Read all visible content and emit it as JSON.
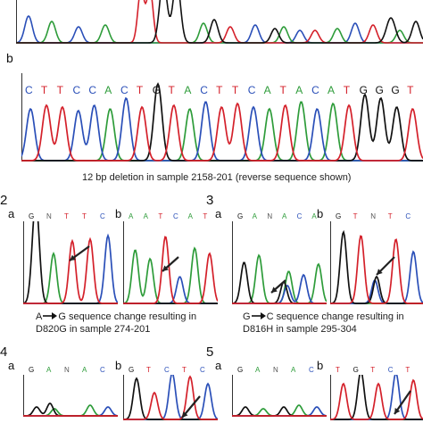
{
  "colors": {
    "A": "#2e9c3a",
    "C": "#2a4fb8",
    "G": "#111111",
    "T": "#d4202a"
  },
  "panel1": {
    "label_b": "b",
    "seq_b": [
      "C",
      "T",
      "T",
      "C",
      "C",
      "A",
      "C",
      "T",
      "G",
      "T",
      "A",
      "C",
      "T",
      "T",
      "C",
      "A",
      "T",
      "A",
      "C",
      "A",
      "T",
      "G",
      "G",
      "G",
      "T"
    ],
    "caption": "12 bp deletion in sample 2158-201 (reverse sequence shown)"
  },
  "panel2": {
    "num": "2",
    "a": {
      "label": "a",
      "seq": [
        "G",
        "N",
        "T",
        "T",
        "C"
      ]
    },
    "b": {
      "label": "b",
      "seq": [
        "A",
        "A",
        "T",
        "C",
        "A",
        "T"
      ]
    },
    "caption1": "A",
    "caption1_rest": "G sequence change resulting in",
    "caption2": "D820G in sample 274-201"
  },
  "panel3": {
    "num": "3",
    "a": {
      "label": "a",
      "seq": [
        "G",
        "A",
        "N",
        "A",
        "C",
        "A"
      ]
    },
    "b": {
      "label": "b",
      "seq": [
        "G",
        "T",
        "N",
        "T",
        "C"
      ]
    },
    "caption1": "G",
    "caption1_rest": "C sequence change resulting in",
    "caption2": "D816H in sample 295-304"
  },
  "panel4": {
    "num": "4",
    "a": {
      "label": "a",
      "seq": [
        "G",
        "A",
        "N",
        "A",
        "C"
      ]
    },
    "b": {
      "label": "b",
      "seq": [
        "G",
        "T",
        "C",
        "T",
        "C"
      ]
    }
  },
  "panel5": {
    "num": "5",
    "a": {
      "label": "a",
      "seq": [
        "G",
        "A",
        "N",
        "A",
        "C"
      ]
    },
    "b": {
      "label": "b",
      "seq": [
        "T",
        "G",
        "T",
        "C",
        "T"
      ]
    }
  }
}
